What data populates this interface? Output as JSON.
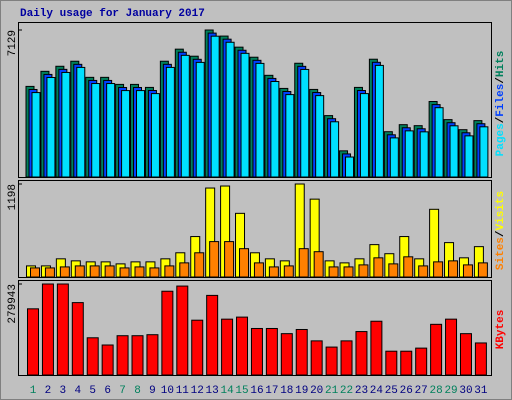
{
  "chart_data": [
    {
      "type": "bar",
      "title": "Daily usage for January 2017",
      "title_color": "#0000a0",
      "ylim": [
        0,
        7129
      ],
      "yticks": [
        7129
      ],
      "legend_separator": "/",
      "series": [
        {
          "name": "Hits",
          "color": "#00805c",
          "values": [
            4394,
            5125,
            5370,
            5614,
            4833,
            4833,
            4491,
            4491,
            4345,
            5614,
            6200,
            5858,
            7129,
            6834,
            6297,
            5809,
            4931,
            4296,
            5516,
            4247,
            2978,
            1269,
            4345,
            5712,
            2197,
            2538,
            2490,
            3661,
            2783,
            2295,
            2734
          ]
        },
        {
          "name": "Files",
          "color": "#0040ff",
          "values": [
            4244,
            4975,
            5220,
            5464,
            4683,
            4683,
            4341,
            4341,
            4195,
            5464,
            6050,
            5708,
            6979,
            6684,
            6147,
            5659,
            4781,
            4146,
            5366,
            4097,
            2828,
            1119,
            4195,
            5562,
            2047,
            2388,
            2340,
            3511,
            2633,
            2145,
            2584
          ]
        },
        {
          "name": "Pages",
          "color": "#00e0ff",
          "values": [
            4094,
            4825,
            5070,
            5314,
            4533,
            4533,
            4191,
            4191,
            4045,
            5314,
            5900,
            5558,
            6829,
            6534,
            5997,
            5509,
            4631,
            3996,
            5216,
            3947,
            2678,
            969,
            4045,
            5412,
            1897,
            2238,
            2190,
            3361,
            2483,
            1995,
            2434
          ]
        }
      ]
    },
    {
      "type": "bar",
      "ylim": [
        0,
        1198
      ],
      "yticks": [
        1198
      ],
      "legend_separator": "/",
      "series": [
        {
          "name": "Visits",
          "color": "#ffff00",
          "values": [
            143,
            143,
            234,
            208,
            195,
            195,
            169,
            195,
            195,
            234,
            312,
            521,
            1146,
            1172,
            820,
            312,
            234,
            208,
            1198,
            1003,
            208,
            182,
            234,
            417,
            300,
            521,
            234,
            872,
            443,
            247,
            391
          ]
        },
        {
          "name": "Sites",
          "color": "#ff8000",
          "values": [
            117,
            117,
            130,
            143,
            143,
            143,
            117,
            130,
            117,
            143,
            182,
            312,
            456,
            456,
            365,
            182,
            130,
            143,
            365,
            326,
            130,
            130,
            156,
            247,
            169,
            260,
            143,
            195,
            208,
            156,
            182
          ]
        }
      ]
    },
    {
      "type": "bar",
      "ylim": [
        0,
        279943
      ],
      "yticks": [
        279943
      ],
      "categories": [
        "1",
        "2",
        "3",
        "4",
        "5",
        "6",
        "7",
        "8",
        "9",
        "10",
        "11",
        "12",
        "13",
        "14",
        "15",
        "16",
        "17",
        "18",
        "19",
        "20",
        "21",
        "22",
        "23",
        "24",
        "25",
        "26",
        "27",
        "28",
        "29",
        "30",
        "31"
      ],
      "category_colors": [
        "#00805c",
        "#000080",
        "#000080",
        "#000080",
        "#000080",
        "#000080",
        "#00805c",
        "#00805c",
        "#000080",
        "#000080",
        "#000080",
        "#000080",
        "#000080",
        "#00805c",
        "#00805c",
        "#000080",
        "#000080",
        "#000080",
        "#000080",
        "#000080",
        "#00805c",
        "#00805c",
        "#000080",
        "#000080",
        "#000080",
        "#000080",
        "#000080",
        "#00805c",
        "#00805c",
        "#000080",
        "#000080"
      ],
      "series": [
        {
          "name": "KBytes",
          "color": "#ff0000",
          "values": [
            203600,
            279943,
            279943,
            222700,
            114500,
            92300,
            120900,
            120900,
            124000,
            257700,
            273600,
            168600,
            244900,
            171800,
            178100,
            143100,
            143100,
            127200,
            140000,
            105000,
            85900,
            105000,
            133600,
            165400,
            73200,
            73200,
            82700,
            155900,
            171800,
            127200,
            98600
          ]
        }
      ]
    }
  ]
}
